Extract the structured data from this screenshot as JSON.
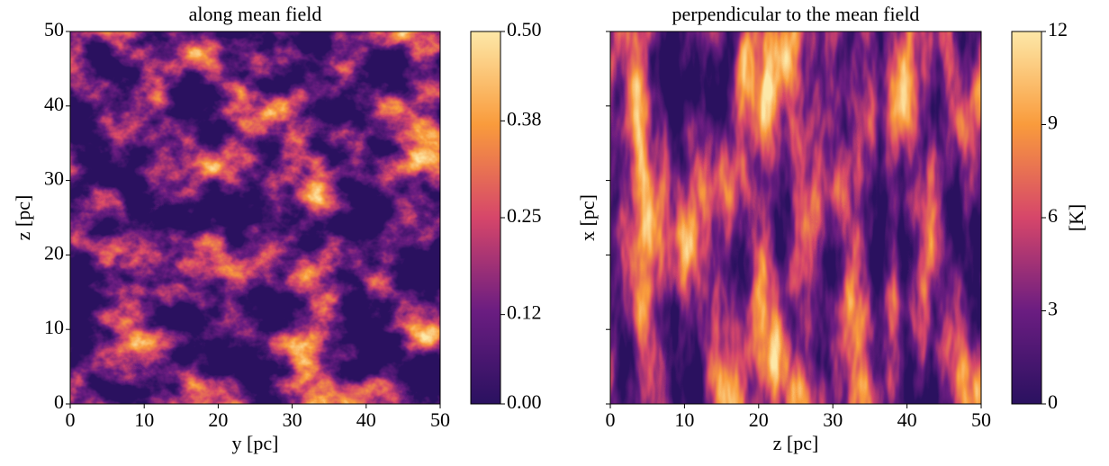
{
  "chart_data": [
    {
      "type": "image",
      "title": "along mean field",
      "xlabel": "y [pc]",
      "ylabel": "z [pc]",
      "xlim": [
        0,
        50
      ],
      "ylim": [
        0,
        50
      ],
      "xticks": [
        0,
        10,
        20,
        30,
        40,
        50
      ],
      "yticks": [
        0,
        10,
        20,
        30,
        40,
        50
      ],
      "show_ytick_labels": true,
      "colormap": [
        "#2a1160",
        "#6b1d81",
        "#d6466a",
        "#f99b3c",
        "#fde8a8"
      ],
      "colorbar": {
        "lim": [
          0,
          0.5
        ],
        "ticks": [
          {
            "value": 0,
            "label": "0.00"
          },
          0.12,
          0.25,
          0.38,
          {
            "value": 0.5,
            "label": "0.50"
          }
        ]
      }
    },
    {
      "type": "image",
      "title": "perpendicular to the mean field",
      "xlabel": "z [pc]",
      "ylabel": "x [pc]",
      "xlim": [
        0,
        50
      ],
      "ylim": [
        0,
        50
      ],
      "xticks": [
        0,
        10,
        20,
        30,
        40,
        50
      ],
      "yticks": [
        0,
        10,
        20,
        30,
        40,
        50
      ],
      "show_ytick_labels": false,
      "colormap": [
        "#2a1160",
        "#6b1d81",
        "#d6466a",
        "#f99b3c",
        "#fde8a8"
      ],
      "colorbar": {
        "lim": [
          0,
          12
        ],
        "ticks": [
          0,
          3,
          6,
          9,
          12
        ],
        "label": "[K]"
      }
    }
  ]
}
